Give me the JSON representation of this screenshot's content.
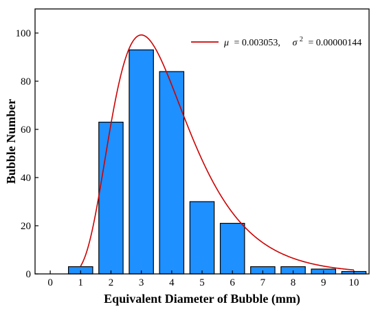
{
  "chart_data": {
    "type": "bar",
    "xlabel": "Equivalent Diameter of Bubble (mm)",
    "ylabel": "Bubble Number",
    "xlim": [
      -0.5,
      10.5
    ],
    "ylim": [
      0,
      110
    ],
    "x_ticks": [
      0,
      1,
      2,
      3,
      4,
      5,
      6,
      7,
      8,
      9,
      10
    ],
    "y_ticks": [
      0,
      20,
      40,
      60,
      80,
      100
    ],
    "categories": [
      1,
      2,
      3,
      4,
      5,
      6,
      7,
      8,
      9,
      10
    ],
    "values": [
      3,
      63,
      93,
      84,
      30,
      21,
      3,
      3,
      2,
      1
    ],
    "bar_color": "#1e90ff",
    "fit_curve": {
      "type": "lognormal",
      "color": "#cc0000",
      "legend": {
        "mu_symbol": "μ",
        "mu_value": "= 0.003053,",
        "sigma_symbol": "σ",
        "sigma_exp": "2",
        "sigma_value": "= 0.00000144"
      }
    },
    "legend_position": "top-right",
    "grid": false
  }
}
